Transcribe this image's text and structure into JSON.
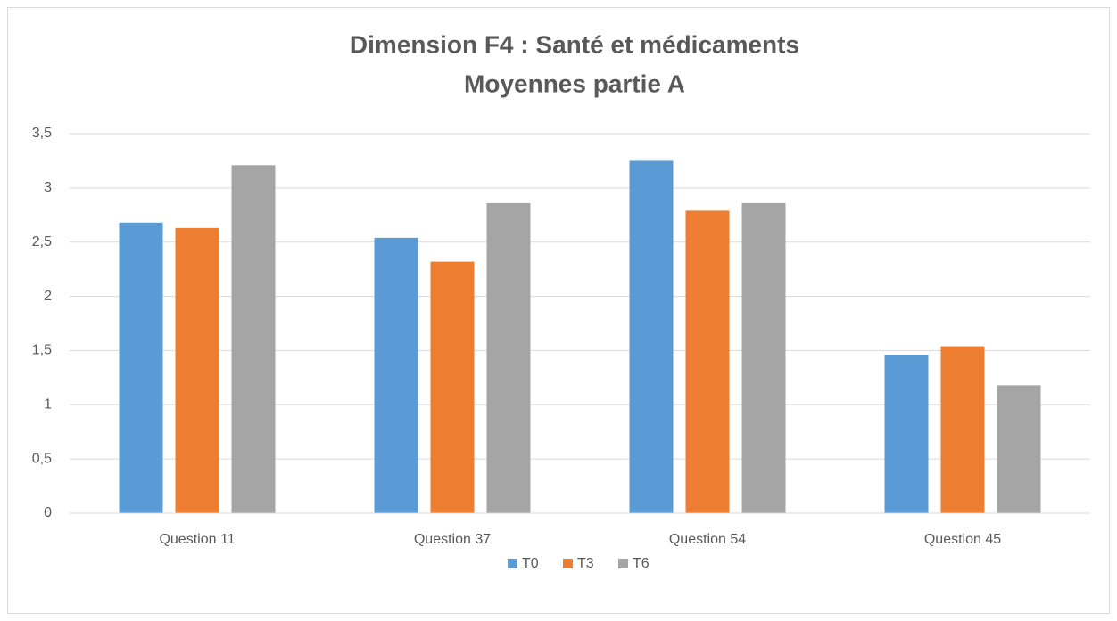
{
  "chart_data": {
    "type": "bar",
    "title": "Dimension F4 : Santé et médicaments",
    "subtitle": "Moyennes partie A",
    "categories": [
      "Question 11",
      "Question 37",
      "Question 54",
      "Question 45"
    ],
    "series": [
      {
        "name": "T0",
        "color": "#5b9bd5",
        "values": [
          2.68,
          2.54,
          3.25,
          1.46
        ]
      },
      {
        "name": "T3",
        "color": "#ed7d31",
        "values": [
          2.63,
          2.32,
          2.79,
          1.54
        ]
      },
      {
        "name": "T6",
        "color": "#a5a5a5",
        "values": [
          3.21,
          2.86,
          2.86,
          1.18
        ]
      }
    ],
    "ylim": [
      0,
      3.5
    ],
    "yticks": [
      0,
      {
        "value": 0.5,
        "label": "0,5"
      },
      1,
      {
        "value": 1.5,
        "label": "1,5"
      },
      2,
      {
        "value": 2.5,
        "label": "2,5"
      },
      3,
      {
        "value": 3.5,
        "label": "3,5"
      }
    ],
    "grid": true,
    "legend": "bottom"
  }
}
